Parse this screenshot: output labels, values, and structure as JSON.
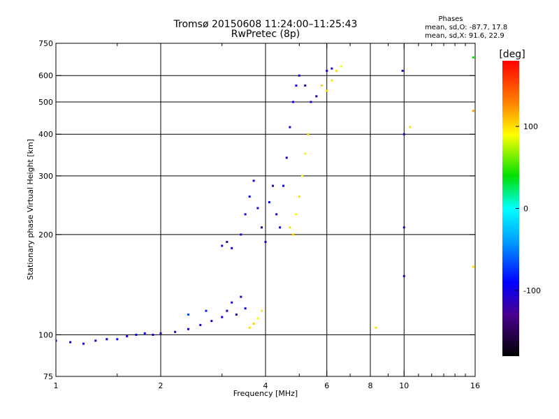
{
  "chart_data": {
    "type": "scatter",
    "title": "Tromsø 20150608 11:24:00–11:25:43",
    "subtitle": "RwPretec (8p)",
    "xlabel": "Frequency [MHz]",
    "ylabel": "Stationary phase Virtual Height [km]",
    "x_scale": "log",
    "y_scale": "log",
    "xlim": [
      1,
      16
    ],
    "ylim": [
      75,
      750
    ],
    "grid": true,
    "x_ticks": [
      1,
      2,
      4,
      6,
      8,
      10,
      16
    ],
    "x_tick_labels": [
      "1",
      "2",
      "4",
      "6",
      "8",
      "10",
      "16"
    ],
    "x_minor_ticks": [
      1.5,
      3,
      5,
      7,
      9,
      11,
      12,
      13,
      14,
      15
    ],
    "y_ticks": [
      75,
      100,
      200,
      300,
      400,
      500,
      600,
      750
    ],
    "y_tick_labels": [
      "75",
      "100",
      "200",
      "300",
      "400",
      "500",
      "600",
      "750"
    ],
    "legend": {
      "title": "Phases",
      "line1": "mean, sd,O: -87.7, 17.8",
      "line2": "mean, sd,X:  91.6, 22.9"
    },
    "colorbar": {
      "label": "[deg]",
      "range": [
        -180,
        180
      ],
      "tick_values": [
        100,
        0,
        -100
      ],
      "tick_labels": [
        "100",
        "0",
        "-100"
      ]
    },
    "series": [
      {
        "color_by": "phase",
        "points": [
          [
            1.0,
            96,
            -100
          ],
          [
            1.1,
            95,
            -95
          ],
          [
            1.2,
            94,
            -105
          ],
          [
            1.3,
            96,
            -100
          ],
          [
            1.4,
            97,
            -90
          ],
          [
            1.5,
            97,
            -95
          ],
          [
            1.6,
            99,
            -100
          ],
          [
            1.7,
            100,
            -90
          ],
          [
            1.8,
            101,
            -95
          ],
          [
            1.9,
            100,
            -100
          ],
          [
            2.0,
            101,
            -105
          ],
          [
            2.2,
            102,
            -95
          ],
          [
            2.4,
            104,
            -100
          ],
          [
            2.6,
            107,
            -95
          ],
          [
            2.8,
            110,
            -100
          ],
          [
            3.0,
            113,
            -100
          ],
          [
            3.1,
            118,
            -95
          ],
          [
            3.2,
            125,
            -105
          ],
          [
            2.4,
            115,
            -70
          ],
          [
            2.7,
            118,
            -80
          ],
          [
            3.0,
            185,
            -110
          ],
          [
            3.1,
            190,
            -115
          ],
          [
            3.2,
            182,
            -108
          ],
          [
            3.3,
            115,
            -110
          ],
          [
            3.4,
            130,
            -100
          ],
          [
            3.5,
            120,
            -90
          ],
          [
            3.6,
            105,
            100
          ],
          [
            3.7,
            108,
            105
          ],
          [
            3.8,
            112,
            90
          ],
          [
            3.9,
            118,
            95
          ],
          [
            3.4,
            200,
            -100
          ],
          [
            3.5,
            230,
            -105
          ],
          [
            3.6,
            260,
            -95
          ],
          [
            3.7,
            290,
            -100
          ],
          [
            3.8,
            240,
            -110
          ],
          [
            3.9,
            210,
            -100
          ],
          [
            4.0,
            190,
            -105
          ],
          [
            4.1,
            250,
            -95
          ],
          [
            4.2,
            280,
            -100
          ],
          [
            4.3,
            230,
            -110
          ],
          [
            4.4,
            210,
            -100
          ],
          [
            4.5,
            280,
            -95
          ],
          [
            4.6,
            340,
            -100
          ],
          [
            4.7,
            420,
            -105
          ],
          [
            4.8,
            500,
            -100
          ],
          [
            4.9,
            560,
            -95
          ],
          [
            5.0,
            600,
            -100
          ],
          [
            5.2,
            560,
            -105
          ],
          [
            5.4,
            500,
            -100
          ],
          [
            5.6,
            520,
            -95
          ],
          [
            5.8,
            560,
            -100
          ],
          [
            6.0,
            620,
            -105
          ],
          [
            6.2,
            630,
            -100
          ],
          [
            4.7,
            210,
            100
          ],
          [
            4.8,
            200,
            105
          ],
          [
            4.9,
            230,
            95
          ],
          [
            5.0,
            260,
            100
          ],
          [
            5.1,
            300,
            90
          ],
          [
            5.2,
            350,
            95
          ],
          [
            5.3,
            400,
            100
          ],
          [
            5.8,
            560,
            100
          ],
          [
            6.0,
            540,
            105
          ],
          [
            6.2,
            580,
            95
          ],
          [
            6.4,
            620,
            100
          ],
          [
            6.6,
            640,
            90
          ],
          [
            9.9,
            620,
            -100
          ],
          [
            10.0,
            400,
            -100
          ],
          [
            10.0,
            210,
            -100
          ],
          [
            10.0,
            150,
            -100
          ],
          [
            10.4,
            420,
            100
          ],
          [
            8.3,
            105,
            100
          ],
          [
            15.8,
            680,
            40
          ],
          [
            15.8,
            470,
            120
          ],
          [
            15.8,
            160,
            100
          ]
        ]
      }
    ]
  }
}
